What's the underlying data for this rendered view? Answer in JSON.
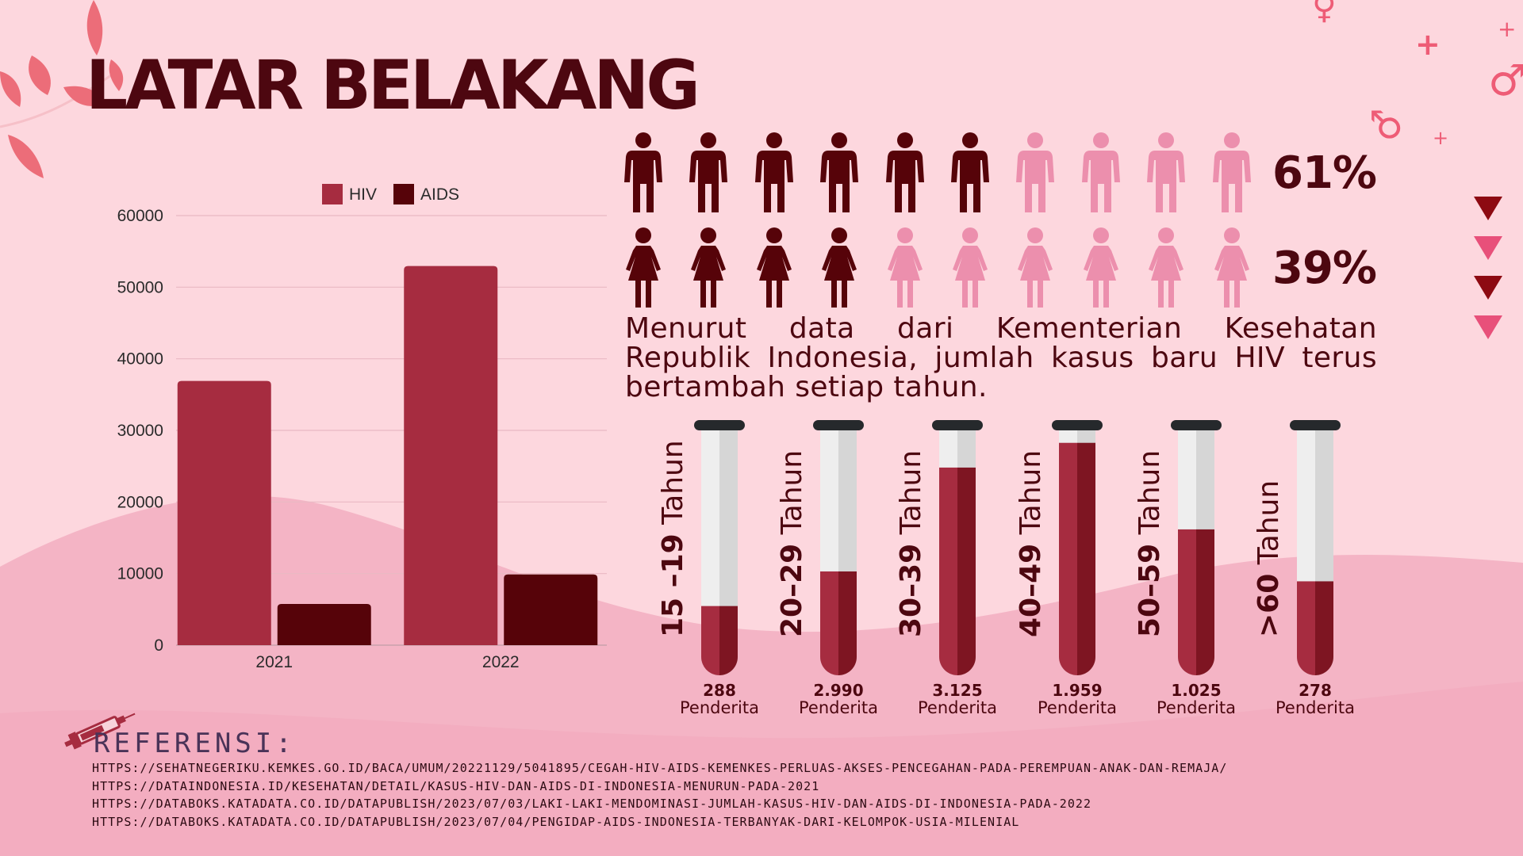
{
  "title": "LATAR BELAKANG",
  "legend": [
    {
      "label": "HIV",
      "color": "#a62c40"
    },
    {
      "label": "AIDS",
      "color": "#560309"
    }
  ],
  "chart_data": {
    "type": "bar",
    "categories": [
      "2021",
      "2022"
    ],
    "series": [
      {
        "name": "HIV",
        "values": [
          36900,
          52955
        ]
      },
      {
        "name": "AIDS",
        "values": [
          5750,
          9880
        ]
      }
    ],
    "yticks": [
      "0",
      "10000",
      "20000",
      "30000",
      "40000",
      "50000",
      "60000"
    ],
    "ylim": [
      0,
      60000
    ],
    "grid": true,
    "legend_position": "top-center"
  },
  "people": {
    "male": {
      "percent": "61%",
      "filled": 6,
      "total": 10
    },
    "female": {
      "percent": "39%",
      "filled": 4,
      "total": 10
    },
    "filled_color": "#560309",
    "empty_color": "#ec8fad"
  },
  "description": "Menurut data dari Kementerian Kesehatan Republik Indonesia, jumlah kasus baru HIV terus bertambah setiap tahun.",
  "tubes": [
    {
      "age_bold": "15 –19",
      "age_rest": " Tahun",
      "count": "288",
      "unit": "Penderita",
      "fill": 0.28
    },
    {
      "age_bold": "20–29",
      "age_rest": " Tahun",
      "count": "2.990",
      "unit": "Penderita",
      "fill": 0.42
    },
    {
      "age_bold": "30–39",
      "age_rest": " Tahun",
      "count": "3.125",
      "unit": "Penderita",
      "fill": 0.84
    },
    {
      "age_bold": "40–49",
      "age_rest": " Tahun",
      "count": "1.959",
      "unit": "Penderita",
      "fill": 0.94
    },
    {
      "age_bold": "50–59",
      "age_rest": " Tahun",
      "count": "1.025",
      "unit": "Penderita",
      "fill": 0.59
    },
    {
      "age_bold": ">60",
      "age_rest": " Tahun",
      "count": "278",
      "unit": "Penderita",
      "fill": 0.38
    }
  ],
  "references": {
    "title": "REFERENSI:",
    "items": [
      "HTTPS://SEHATNEGERIKU.KEMKES.GO.ID/BACA/UMUM/20221129/5041895/CEGAH-HIV-AIDS-KEMENKES-PERLUAS-AKSES-PENCEGAHAN-PADA-PEREMPUAN-ANAK-DAN-REMAJA/",
      "HTTPS://DATAINDONESIA.ID/KESEHATAN/DETAIL/KASUS-HIV-DAN-AIDS-DI-INDONESIA-MENURUN-PADA-2021",
      "HTTPS://DATABOKS.KATADATA.CO.ID/DATAPUBLISH/2023/07/03/LAKI-LAKI-MENDOMINASI-JUMLAH-KASUS-HIV-DAN-AIDS-DI-INDONESIA-PADA-2022",
      "HTTPS://DATABOKS.KATADATA.CO.ID/DATAPUBLISH/2023/07/04/PENGIDAP-AIDS-INDONESIA-TERBANYAK-DARI-KELOMPOK-USIA-MILENIAL"
    ]
  },
  "decor": {
    "marker_colors": [
      "#8d0a12",
      "#e8507a",
      "#8d0a12",
      "#e8507a"
    ],
    "symbols": [
      "♀",
      "♂",
      "♂",
      "+",
      "+",
      "+"
    ]
  }
}
